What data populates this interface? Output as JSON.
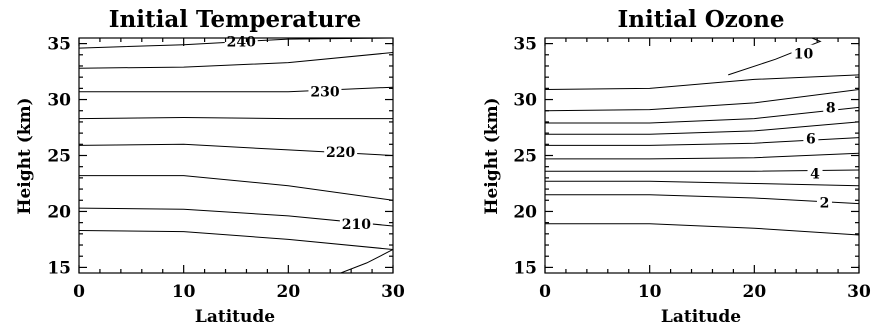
{
  "chart_data": [
    {
      "type": "contour",
      "title": "Initial Temperature",
      "xlabel": "Latitude",
      "ylabel": "Height (km)",
      "xlim": [
        0,
        30
      ],
      "ylim": [
        14.5,
        35.5
      ],
      "xticks": [
        "0",
        "10",
        "20",
        "30"
      ],
      "yticks": [
        "15",
        "20",
        "25",
        "30",
        "35"
      ],
      "contours": [
        {
          "label": "",
          "points": [
            [
              25.0,
              14.5
            ],
            [
              27.5,
              15.4
            ],
            [
              30.0,
              16.6
            ]
          ]
        },
        {
          "label": "",
          "points": [
            [
              0,
              18.3
            ],
            [
              10,
              18.2
            ],
            [
              20,
              17.5
            ],
            [
              30,
              16.6
            ]
          ]
        },
        {
          "label": "210",
          "label_at": [
            26.5,
            18.9
          ],
          "points": [
            [
              0,
              20.3
            ],
            [
              10,
              20.2
            ],
            [
              20,
              19.6
            ],
            [
              30,
              18.7
            ]
          ]
        },
        {
          "label": "",
          "points": [
            [
              0,
              23.2
            ],
            [
              10,
              23.2
            ],
            [
              20,
              22.3
            ],
            [
              30,
              21.0
            ]
          ]
        },
        {
          "label": "220",
          "label_at": [
            25.0,
            25.3
          ],
          "points": [
            [
              0,
              25.9
            ],
            [
              10,
              26.0
            ],
            [
              20,
              25.5
            ],
            [
              30,
              25.0
            ]
          ]
        },
        {
          "label": "",
          "points": [
            [
              0,
              28.3
            ],
            [
              10,
              28.4
            ],
            [
              20,
              28.3
            ],
            [
              30,
              28.3
            ]
          ]
        },
        {
          "label": "230",
          "label_at": [
            23.5,
            30.7
          ],
          "points": [
            [
              0,
              30.7
            ],
            [
              10,
              30.7
            ],
            [
              20,
              30.7
            ],
            [
              30,
              31.1
            ]
          ]
        },
        {
          "label": "",
          "points": [
            [
              0,
              32.8
            ],
            [
              10,
              32.9
            ],
            [
              20,
              33.3
            ],
            [
              30,
              34.2
            ]
          ]
        },
        {
          "label": "240",
          "label_at": [
            15.5,
            35.2
          ],
          "points": [
            [
              0,
              34.6
            ],
            [
              10,
              34.9
            ],
            [
              20,
              35.4
            ],
            [
              30,
              35.5
            ]
          ]
        }
      ]
    },
    {
      "type": "contour",
      "title": "Initial Ozone",
      "xlabel": "Latitude",
      "ylabel": "Height (km)",
      "xlim": [
        0,
        30
      ],
      "ylim": [
        14.5,
        35.5
      ],
      "xticks": [
        "0",
        "10",
        "20",
        "30"
      ],
      "yticks": [
        "15",
        "20",
        "25",
        "30",
        "35"
      ],
      "contours": [
        {
          "label": "",
          "points": [
            [
              0,
              18.9
            ],
            [
              10,
              18.9
            ],
            [
              20,
              18.5
            ],
            [
              30,
              17.9
            ]
          ]
        },
        {
          "label": "2",
          "label_at": [
            26.7,
            20.8
          ],
          "points": [
            [
              0,
              21.5
            ],
            [
              10,
              21.5
            ],
            [
              20,
              21.2
            ],
            [
              30,
              20.7
            ]
          ]
        },
        {
          "label": "",
          "points": [
            [
              0,
              22.7
            ],
            [
              10,
              22.7
            ],
            [
              20,
              22.5
            ],
            [
              30,
              22.3
            ]
          ]
        },
        {
          "label": "4",
          "label_at": [
            25.8,
            23.4
          ],
          "points": [
            [
              0,
              23.6
            ],
            [
              10,
              23.6
            ],
            [
              20,
              23.6
            ],
            [
              30,
              23.7
            ]
          ]
        },
        {
          "label": "",
          "points": [
            [
              0,
              24.7
            ],
            [
              10,
              24.7
            ],
            [
              20,
              24.8
            ],
            [
              30,
              25.2
            ]
          ]
        },
        {
          "label": "6",
          "label_at": [
            25.4,
            26.5
          ],
          "points": [
            [
              0,
              25.9
            ],
            [
              10,
              25.9
            ],
            [
              20,
              26.1
            ],
            [
              30,
              26.6
            ]
          ]
        },
        {
          "label": "",
          "points": [
            [
              0,
              26.9
            ],
            [
              10,
              26.9
            ],
            [
              20,
              27.2
            ],
            [
              30,
              28.0
            ]
          ]
        },
        {
          "label": "",
          "points": [
            [
              0,
              27.9
            ],
            [
              10,
              27.9
            ],
            [
              20,
              28.3
            ],
            [
              30,
              29.3
            ]
          ]
        },
        {
          "label": "8",
          "label_at": [
            27.3,
            29.3
          ],
          "points": [
            [
              0,
              29.0
            ],
            [
              10,
              29.1
            ],
            [
              20,
              29.7
            ],
            [
              30,
              30.9
            ]
          ]
        },
        {
          "label": "",
          "points": [
            [
              0,
              30.9
            ],
            [
              10,
              31.0
            ],
            [
              20,
              31.8
            ],
            [
              30,
              32.2
            ]
          ]
        },
        {
          "label": "10",
          "label_at": [
            24.7,
            34.1
          ],
          "points": [
            [
              17.5,
              32.2
            ],
            [
              22,
              33.6
            ],
            [
              26.3,
              35.2
            ],
            [
              25.5,
              35.5
            ]
          ]
        }
      ]
    }
  ]
}
